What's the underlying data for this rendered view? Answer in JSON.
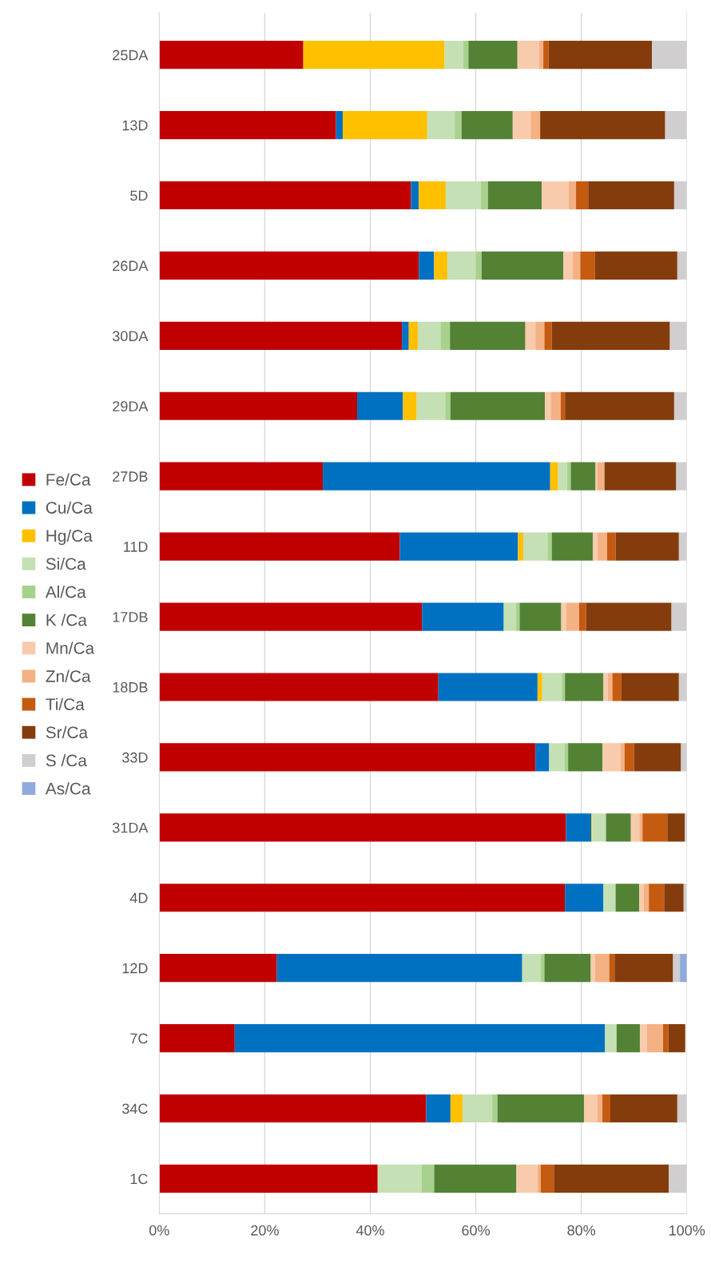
{
  "chart_data": {
    "type": "bar",
    "orientation": "horizontal",
    "stacked": true,
    "categories": [
      "25DA",
      "13D",
      "5D",
      "26DA",
      "30DA",
      "29DA",
      "27DB",
      "11D",
      "17DB",
      "18DB",
      "33D",
      "31DA",
      "4D",
      "12D",
      "7C",
      "34C",
      "1C"
    ],
    "series": [
      {
        "name": "Fe/Ca",
        "color": "#c00000",
        "values": [
          27.3,
          33.5,
          47.7,
          49.2,
          46.0,
          37.5,
          31.0,
          45.6,
          49.8,
          52.9,
          71.3,
          77.1,
          76.9,
          22.3,
          14.3,
          50.6,
          41.4
        ]
      },
      {
        "name": "Cu/Ca",
        "color": "#0070c0",
        "values": [
          0,
          1.3,
          1.5,
          2.9,
          1.3,
          8.7,
          43.1,
          22.4,
          15.5,
          18.8,
          2.6,
          4.8,
          7.3,
          46.5,
          70.2,
          4.6,
          0
        ]
      },
      {
        "name": "Hg/Ca",
        "color": "#ffc000",
        "values": [
          26.8,
          16.0,
          5.1,
          2.5,
          1.7,
          2.6,
          1.5,
          1.0,
          null,
          0.9,
          0,
          0.2,
          0,
          0,
          0,
          2.3,
          0
        ]
      },
      {
        "name": "Si/Ca",
        "color": "#c5e0b4",
        "values": [
          3.5,
          5.2,
          6.6,
          5.4,
          4.3,
          5.4,
          1.7,
          4.6,
          2.3,
          3.7,
          2.9,
          2.4,
          2.3,
          3.5,
          2.1,
          5.6,
          8.3
        ]
      },
      {
        "name": "Al/Ca",
        "color": "#a9d18e",
        "values": [
          1.0,
          1.3,
          1.4,
          1.1,
          1.8,
          1.0,
          0.7,
          0.8,
          0.7,
          0.6,
          0.7,
          0.2,
          null,
          0.7,
          0.1,
          1.0,
          2.4
        ]
      },
      {
        "name": "K /Ca",
        "color": "#548235",
        "values": [
          9.3,
          9.7,
          10.2,
          15.5,
          14.3,
          17.9,
          4.7,
          7.8,
          7.9,
          7.3,
          6.5,
          4.7,
          4.5,
          8.8,
          4.4,
          16.4,
          15.6
        ]
      },
      {
        "name": "Mn/Ca",
        "color": "#f8cbad",
        "values": [
          4.1,
          3.4,
          5.1,
          1.8,
          1.9,
          1.1,
          0.3,
          0.9,
          0.9,
          0.8,
          3.4,
          1.6,
          0.8,
          0.8,
          1.3,
          2.5,
          4.0
        ]
      },
      {
        "name": "Zn/Ca",
        "color": "#f4b183",
        "values": [
          0.8,
          1.8,
          1.4,
          1.4,
          1.7,
          1.9,
          1.4,
          1.8,
          2.5,
          0.9,
          0.8,
          0.6,
          1.0,
          2.7,
          3.1,
          1.0,
          0.6
        ]
      },
      {
        "name": "Ti/Ca",
        "color": "#c55a11",
        "values": [
          1.0,
          0,
          2.3,
          2.8,
          1.4,
          0.8,
          0,
          1.6,
          1.3,
          1.7,
          1.8,
          4.7,
          2.9,
          1.0,
          1.0,
          1.5,
          2.5
        ]
      },
      {
        "name": "Sr/Ca",
        "color": "#843c0c",
        "values": [
          19.6,
          23.7,
          16.3,
          15.6,
          22.4,
          20.7,
          13.6,
          12.0,
          16.2,
          10.9,
          8.9,
          3.3,
          3.7,
          11.1,
          3.2,
          12.7,
          21.8
        ]
      },
      {
        "name": "S /Ca",
        "color": "#d0cece",
        "values": [
          6.6,
          4.1,
          2.4,
          1.8,
          3.2,
          2.4,
          2.0,
          1.5,
          2.8,
          1.5,
          1.1,
          0.4,
          0.5,
          1.3,
          null,
          1.8,
          3.4
        ]
      },
      {
        "name": "As/Ca",
        "color": "#8faadc",
        "values": [
          0,
          0,
          0,
          0,
          0,
          0,
          0,
          0,
          0,
          0,
          0,
          0,
          0,
          1.3,
          0,
          0,
          0
        ]
      }
    ],
    "xlim": [
      0,
      100
    ],
    "xticks": [
      {
        "value": 0,
        "label": "0%"
      },
      {
        "value": 20,
        "label": "20%"
      },
      {
        "value": 40,
        "label": "40%"
      },
      {
        "value": 60,
        "label": "60%"
      },
      {
        "value": 80,
        "label": "80%"
      },
      {
        "value": 100,
        "label": "100%"
      }
    ],
    "grid": "x",
    "legend": "left"
  }
}
